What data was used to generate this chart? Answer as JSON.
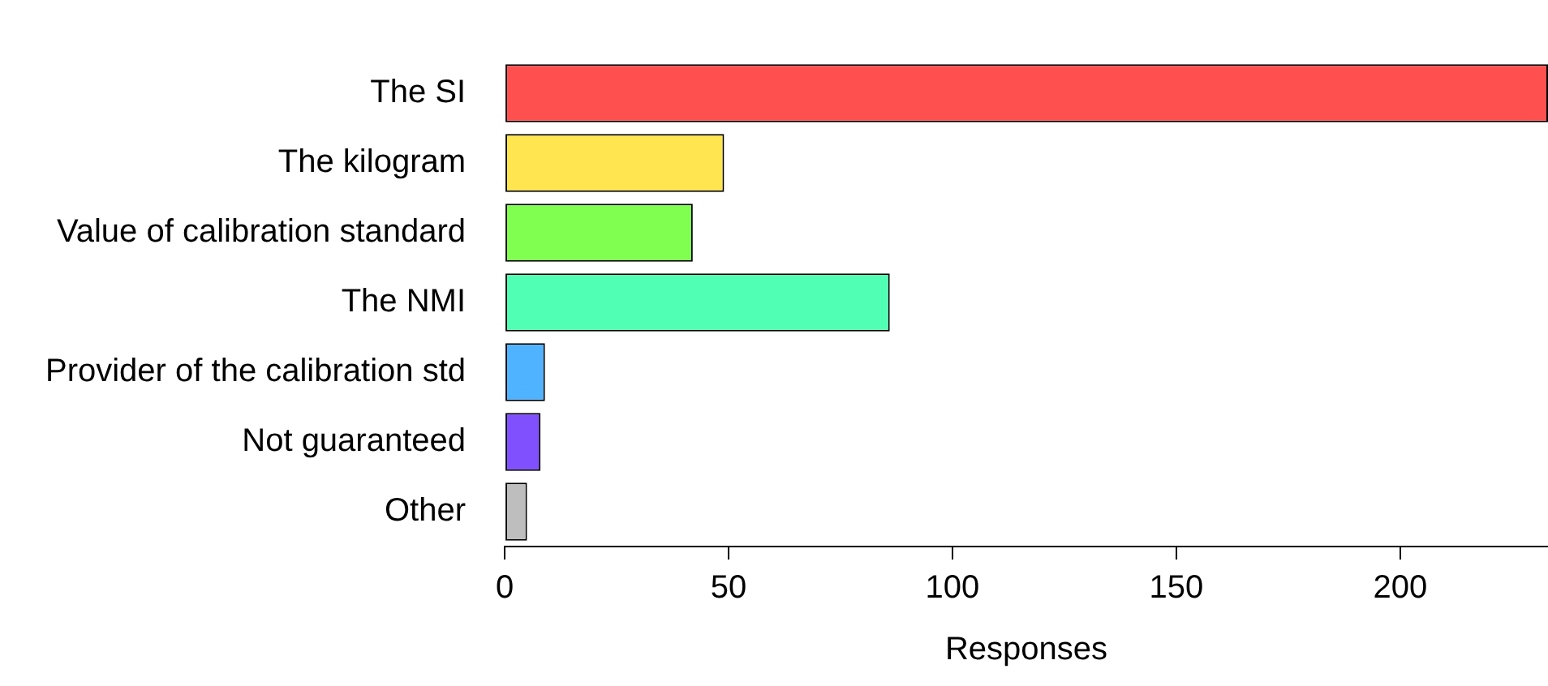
{
  "chart_data": {
    "type": "bar",
    "orientation": "horizontal",
    "xlabel": "Responses",
    "categories": [
      "The SI",
      "The kilogram",
      "Value of calibration standard",
      "The NMI",
      "Provider of the calibration std",
      "Not guaranteed",
      "Other"
    ],
    "values": [
      233,
      49,
      42,
      86,
      9,
      8,
      5
    ],
    "colors": [
      "#ff5050",
      "#ffe650",
      "#80ff50",
      "#50ffb3",
      "#50b3ff",
      "#8050ff",
      "#bebebe"
    ],
    "xlim": [
      0,
      233
    ],
    "xticks": [
      0,
      50,
      100,
      150,
      200
    ],
    "grid": false,
    "legend": false
  }
}
